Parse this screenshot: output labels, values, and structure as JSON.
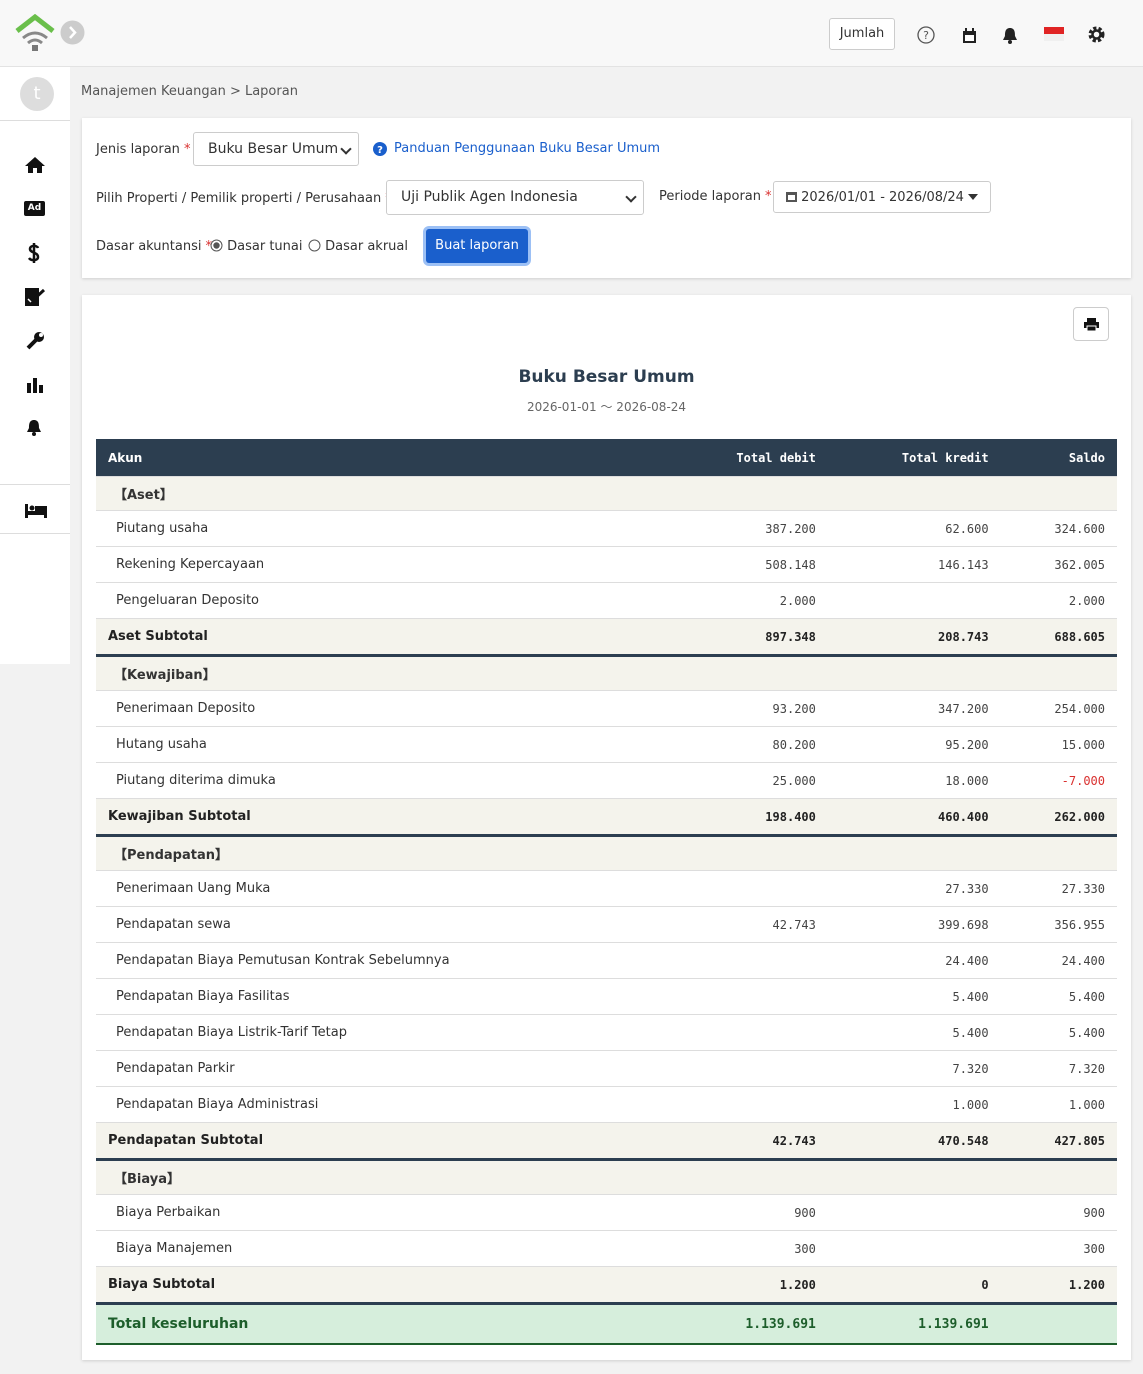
{
  "topbar": {
    "button": "Jumlah"
  },
  "sidebar": {
    "avatar": "t",
    "ad_icon": "Ad"
  },
  "breadcrumb": "Manajemen Keuangan > Laporan",
  "form": {
    "required_mark": "*",
    "report_type_label": "Jenis laporan",
    "report_type_value": "Buku Besar Umum",
    "guide_link": "Panduan Penggunaan Buku Besar Umum",
    "property_label": "Pilih Properti / Pemilik properti / Perusahaan",
    "property_value": "Uji Publik Agen Indonesia",
    "period_label": "Periode laporan",
    "period_value": "2026/01/01 - 2026/08/24",
    "basis_label": "Dasar akuntansi",
    "basis_options": [
      "Dasar tunai",
      "Dasar akrual"
    ],
    "submit": "Buat laporan"
  },
  "report": {
    "title": "Buku Besar Umum",
    "date_range": "2026-01-01 〜 2026-08-24",
    "columns": [
      "Akun",
      "Total debit",
      "Total kredit",
      "Saldo"
    ],
    "sections": [
      {
        "heading": "【Aset】",
        "rows": [
          [
            "Piutang usaha",
            "387.200",
            "62.600",
            "324.600"
          ],
          [
            "Rekening Kepercayaan",
            "508.148",
            "146.143",
            "362.005"
          ],
          [
            "Pengeluaran Deposito",
            "2.000",
            null,
            "2.000"
          ]
        ],
        "subtotal": [
          "Aset Subtotal",
          "897.348",
          "208.743",
          "688.605"
        ]
      },
      {
        "heading": "【Kewajiban】",
        "rows": [
          [
            "Penerimaan Deposito",
            "93.200",
            "347.200",
            "254.000"
          ],
          [
            "Hutang usaha",
            "80.200",
            "95.200",
            "15.000"
          ],
          [
            "Piutang diterima dimuka",
            "25.000",
            "18.000",
            "-7.000"
          ]
        ],
        "subtotal": [
          "Kewajiban Subtotal",
          "198.400",
          "460.400",
          "262.000"
        ]
      },
      {
        "heading": "【Pendapatan】",
        "rows": [
          [
            "Penerimaan Uang Muka",
            null,
            "27.330",
            "27.330"
          ],
          [
            "Pendapatan sewa",
            "42.743",
            "399.698",
            "356.955"
          ],
          [
            "Pendapatan Biaya Pemutusan Kontrak Sebelumnya",
            null,
            "24.400",
            "24.400"
          ],
          [
            "Pendapatan Biaya Fasilitas",
            null,
            "5.400",
            "5.400"
          ],
          [
            "Pendapatan Biaya Listrik-Tarif Tetap",
            null,
            "5.400",
            "5.400"
          ],
          [
            "Pendapatan Parkir",
            null,
            "7.320",
            "7.320"
          ],
          [
            "Pendapatan Biaya Administrasi",
            null,
            "1.000",
            "1.000"
          ]
        ],
        "subtotal": [
          "Pendapatan Subtotal",
          "42.743",
          "470.548",
          "427.805"
        ]
      },
      {
        "heading": "【Biaya】",
        "rows": [
          [
            "Biaya Perbaikan",
            "900",
            null,
            "900"
          ],
          [
            "Biaya Manajemen",
            "300",
            null,
            "300"
          ]
        ],
        "subtotal": [
          "Biaya Subtotal",
          "1.200",
          "0",
          "1.200"
        ]
      }
    ],
    "total": [
      "Total keseluruhan",
      "1.139.691",
      "1.139.691"
    ]
  }
}
